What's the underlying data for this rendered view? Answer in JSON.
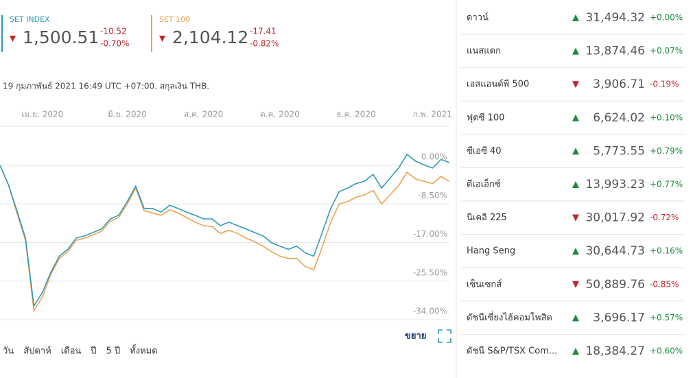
{
  "header": {
    "quotes": [
      {
        "name": "SET INDEX",
        "price": "1,500.51",
        "change": "-10.52",
        "change_pct": "-0.70%",
        "color": "#2e9ab8"
      },
      {
        "name": "SET 100",
        "price": "2,104.12",
        "change": "-17.41",
        "change_pct": "-0.82%",
        "color": "#f0a050"
      }
    ],
    "note": "19 กุมภาพันธ์ 2021 16:49 UTC +07:00. สกุลเงิน THB."
  },
  "chart_data": {
    "type": "line",
    "categories": [
      null,
      null,
      null,
      null,
      null,
      "เม.ย. 2020",
      null,
      null,
      null,
      null,
      null,
      null,
      null,
      null,
      null,
      "มิ.ย. 2020",
      null,
      null,
      null,
      null,
      null,
      null,
      null,
      null,
      "ส.ค. 2020",
      null,
      null,
      null,
      null,
      null,
      null,
      null,
      null,
      "ต.ค. 2020",
      null,
      null,
      null,
      null,
      null,
      null,
      null,
      null,
      "ธ.ค. 2020",
      null,
      null,
      null,
      null,
      null,
      null,
      null,
      null,
      "ก.พ. 2021",
      null,
      null
    ],
    "series": [
      {
        "name": "SET INDEX",
        "color": "#2e9ab8",
        "values": [
          0,
          -4.3,
          -10,
          -16,
          -31,
          -28,
          -23.5,
          -20,
          -18.5,
          -16,
          -15.5,
          -14.8,
          -14,
          -11.8,
          -11,
          -8,
          -4.6,
          -9.5,
          -9.5,
          -10.3,
          -8.8,
          -9.5,
          -10.3,
          -11,
          -11.8,
          -11.8,
          -13.3,
          -12.5,
          -13.3,
          -14,
          -14.8,
          -15.5,
          -17,
          -17.8,
          -18.5,
          -17.8,
          -19.3,
          -20,
          -14.8,
          -9.5,
          -5.8,
          -5,
          -4,
          -3.5,
          -2,
          -5,
          -2.8,
          -0.6,
          2.4,
          0.9,
          0.1,
          -0.6,
          1.3,
          0.6
        ]
      },
      {
        "name": "SET 100",
        "color": "#f0a050",
        "values": [
          0,
          -4.3,
          -10.5,
          -16.5,
          -32,
          -29,
          -24,
          -20.5,
          -19,
          -16.5,
          -16,
          -15.3,
          -14.5,
          -12.3,
          -11.5,
          -8.5,
          -5,
          -10,
          -10.5,
          -11,
          -9.8,
          -10.5,
          -11.5,
          -12.5,
          -13.3,
          -13.5,
          -15,
          -14.3,
          -15,
          -16,
          -16.8,
          -17.8,
          -19,
          -20,
          -20.5,
          -20.5,
          -22.3,
          -23,
          -18,
          -12.5,
          -8.5,
          -8,
          -7,
          -6.5,
          -5.5,
          -8.5,
          -6.5,
          -4.5,
          -1.5,
          -3,
          -3.5,
          -4,
          -2.5,
          -3.5
        ]
      }
    ],
    "ylim": [
      -36,
      9
    ],
    "yticks": [
      {
        "value": 0,
        "label": "0.00%"
      },
      {
        "value": -8.5,
        "label": "-8.50%"
      },
      {
        "value": -17,
        "label": "-17.00%"
      },
      {
        "value": -25.5,
        "label": "-25.50%"
      },
      {
        "value": -34,
        "label": "-34.00%"
      }
    ],
    "grid": true
  },
  "ranges": [
    "วัน",
    "สัปดาห์",
    "เดือน",
    "ปี",
    "5 ปี",
    "ทั้งหมด"
  ],
  "expand": "ขยาย",
  "markets": [
    {
      "name": "ดาวน์",
      "value": "31,494.32",
      "change": "+0.00%",
      "direction": "up"
    },
    {
      "name": "แนสแดก",
      "value": "13,874.46",
      "change": "+0.07%",
      "direction": "up"
    },
    {
      "name": "เอสแอนด์พี 500",
      "value": "3,906.71",
      "change": "-0.19%",
      "direction": "down"
    },
    {
      "name": "ฟุตซี 100",
      "value": "6,624.02",
      "change": "+0.10%",
      "direction": "up"
    },
    {
      "name": "ซีเอซี 40",
      "value": "5,773.55",
      "change": "+0.79%",
      "direction": "up"
    },
    {
      "name": "ดีเอเอ็กซ์",
      "value": "13,993.23",
      "change": "+0.77%",
      "direction": "up"
    },
    {
      "name": "นิเคอิ 225",
      "value": "30,017.92",
      "change": "-0.72%",
      "direction": "down"
    },
    {
      "name": "Hang Seng",
      "value": "30,644.73",
      "change": "+0.16%",
      "direction": "up"
    },
    {
      "name": "เซ็นเซกส์",
      "value": "50,889.76",
      "change": "-0.85%",
      "direction": "down"
    },
    {
      "name": "ดัชนีเซี่ยงไฮ้คอมโพสิต",
      "value": "3,696.17",
      "change": "+0.57%",
      "direction": "up"
    },
    {
      "name": "ดัชนี S&P/TSX Com...",
      "value": "18,384.27",
      "change": "+0.60%",
      "direction": "up"
    }
  ]
}
